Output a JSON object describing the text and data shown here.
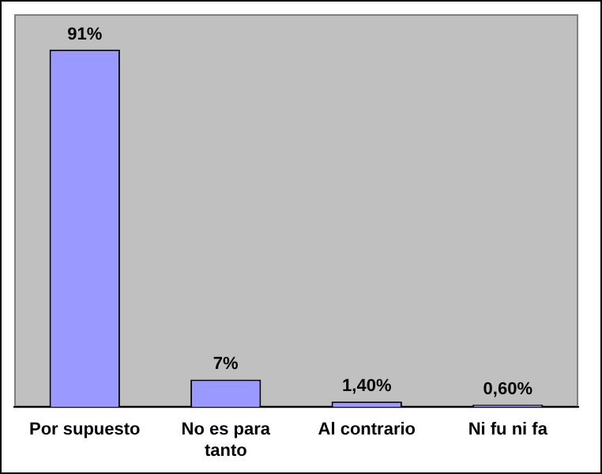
{
  "chart_data": {
    "type": "bar",
    "categories": [
      "Por supuesto",
      "No es para tanto",
      "Al contrario",
      "Ni fu ni fa"
    ],
    "values": [
      91,
      7,
      1.4,
      0.6
    ],
    "value_labels": [
      "91%",
      "7%",
      "1,40%",
      "0,60%"
    ],
    "color": "#9999ff",
    "grid": false,
    "legend": false,
    "tick_labels": "x"
  }
}
